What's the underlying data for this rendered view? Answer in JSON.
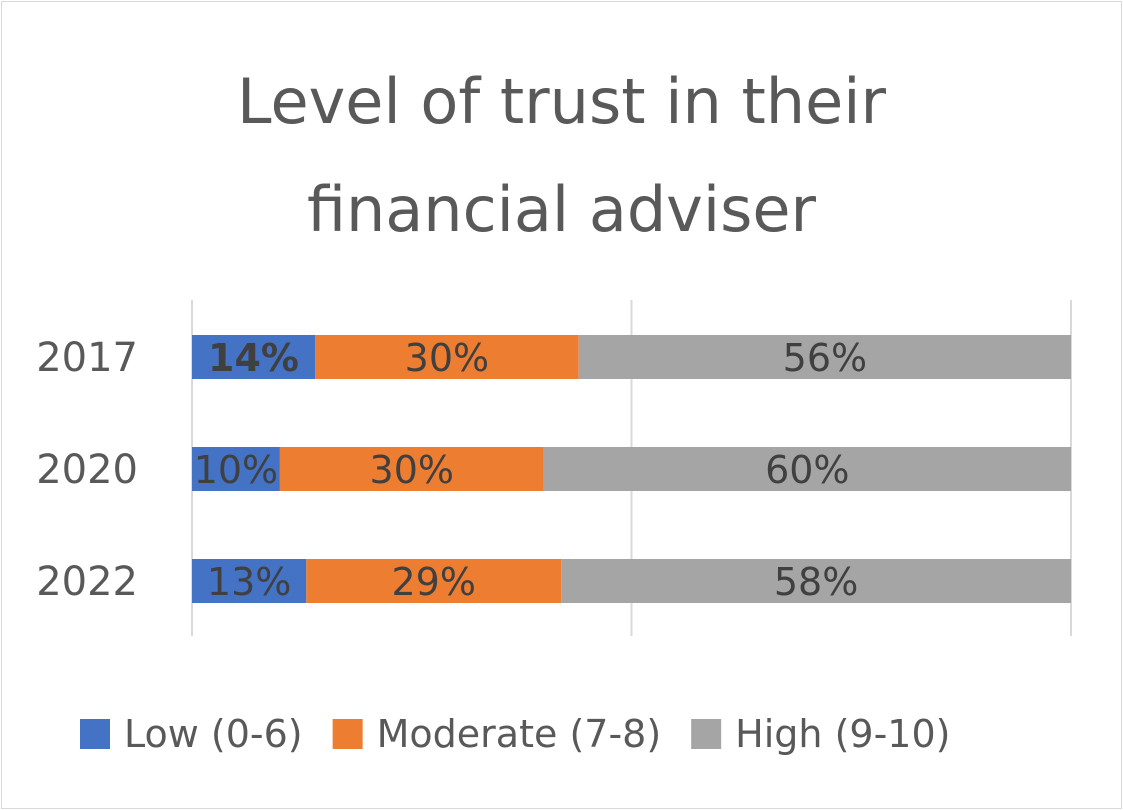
{
  "chart_data": {
    "type": "bar",
    "orientation": "horizontal",
    "stacked": "percent",
    "title_lines": [
      "Level of trust in their",
      "financial adviser"
    ],
    "categories": [
      "2017",
      "2020",
      "2022"
    ],
    "series": [
      {
        "name": "Low (0-6)",
        "color": "#4472c4",
        "values": [
          14,
          10,
          13
        ],
        "labels": [
          "14%",
          "10%",
          "13%"
        ]
      },
      {
        "name": "Moderate (7-8)",
        "color": "#ed7d31",
        "values": [
          30,
          30,
          29
        ],
        "labels": [
          "30%",
          "30%",
          "29%"
        ]
      },
      {
        "name": "High (9-10)",
        "color": "#a5a5a5",
        "values": [
          56,
          60,
          58
        ],
        "labels": [
          "56%",
          "60%",
          "58%"
        ]
      }
    ],
    "xlim": [
      0,
      100
    ],
    "grid": true,
    "legend": "bottom",
    "bold_labels": [
      "14%"
    ]
  }
}
